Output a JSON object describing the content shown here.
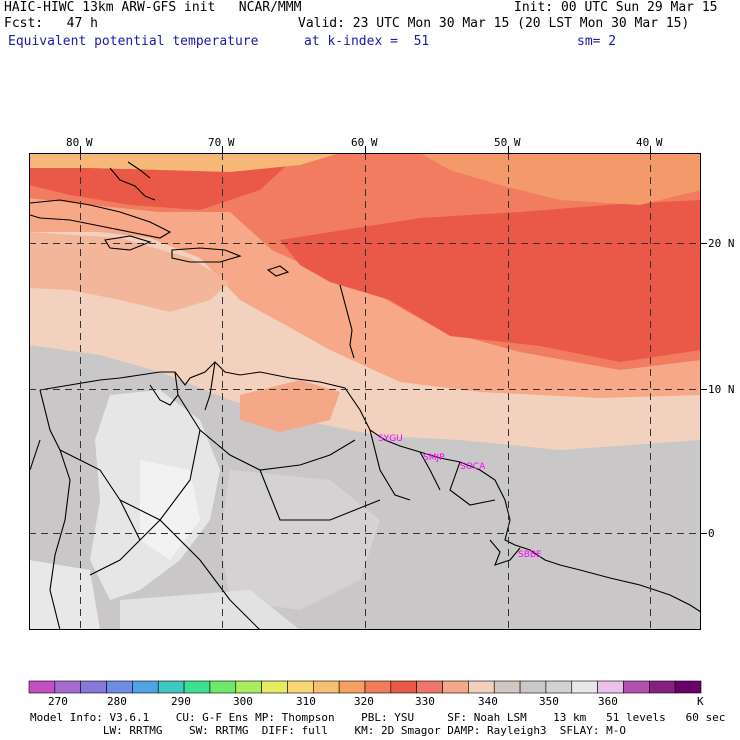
{
  "header": {
    "model_title": "HAIC-HIWC 13km ARW-GFS init   NCAR/MMM",
    "init": "Init: 00 UTC Sun 29 Mar 15",
    "fcst_label": "Fcst:   47 h",
    "valid": "Valid: 23 UTC Mon 30 Mar 15 (20 LST Mon 30 Mar 15)",
    "field": "Equivalent potential temperature",
    "level": "at k-index =  51",
    "smoothing": "sm= 2"
  },
  "map": {
    "lon_labels": [
      "80 W",
      "70 W",
      "60 W",
      "50 W",
      "40 W"
    ],
    "lat_labels": [
      "20 N",
      "10 N",
      "0"
    ],
    "stations": [
      "SYGU",
      "SMJP",
      "SOCA",
      "SBBE"
    ],
    "station_color": "#ff00ff"
  },
  "colorbar": {
    "ticks": [
      "270",
      "280",
      "290",
      "300",
      "310",
      "320",
      "330",
      "340",
      "350",
      "360",
      "K"
    ],
    "colors": [
      "#c34fc3",
      "#a56ccf",
      "#8878dc",
      "#6f8ce3",
      "#4fa3e6",
      "#3ec8c0",
      "#3ce090",
      "#6fe86a",
      "#a9ec5e",
      "#e6ec62",
      "#f6d774",
      "#f6c070",
      "#f6a060",
      "#f07c58",
      "#ea5848",
      "#ee7868",
      "#f4a888",
      "#f2d0bc",
      "#d2c6c0",
      "#cac8c8",
      "#d2d0d0",
      "#e8e8e8",
      "#ecc0ec",
      "#b050b0",
      "#882080",
      "#6a006a"
    ]
  },
  "footer": {
    "line1": "Model Info: V3.6.1    CU: G-F Ens MP: Thompson    PBL: YSU     SF: Noah LSM    13 km   51 levels   60 sec",
    "line2": "           LW: RRTMG    SW: RRTMG  DIFF: full    KM: 2D Smagor DAMP: Rayleigh3  SFLAY: M-O"
  }
}
